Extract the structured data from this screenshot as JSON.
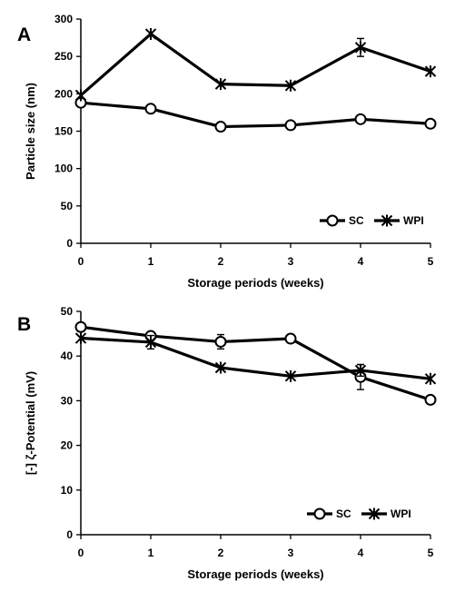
{
  "chart_data": [
    {
      "type": "line",
      "panel_label": "A",
      "xlabel": "Storage periods (weeks)",
      "ylabel": "Particle size (nm)",
      "x": [
        0,
        1,
        2,
        3,
        4,
        5
      ],
      "xticks": [
        0,
        1,
        2,
        3,
        4,
        5
      ],
      "xlim": [
        0,
        5
      ],
      "ylim": [
        0,
        300
      ],
      "yticks": [
        0,
        50,
        100,
        150,
        200,
        250,
        300
      ],
      "grid": false,
      "legend_position": "bottom-right",
      "series": [
        {
          "name": "SC",
          "marker": "circle",
          "values": [
            188,
            180,
            156,
            158,
            166,
            160
          ],
          "errors": [
            0,
            0,
            0,
            0,
            0,
            0
          ]
        },
        {
          "name": "WPI",
          "marker": "asterisk",
          "values": [
            198,
            280,
            213,
            211,
            262,
            230
          ],
          "errors": [
            0,
            0,
            0,
            0,
            12,
            0
          ]
        }
      ]
    },
    {
      "type": "line",
      "panel_label": "B",
      "xlabel": "Storage periods (weeks)",
      "ylabel": "[-] ζ-Potential (mV)",
      "x": [
        0,
        1,
        2,
        3,
        4,
        5
      ],
      "xticks": [
        0,
        1,
        2,
        3,
        4,
        5
      ],
      "xlim": [
        0,
        5
      ],
      "ylim": [
        0,
        50
      ],
      "yticks": [
        0,
        10,
        20,
        30,
        40,
        50
      ],
      "grid": false,
      "legend_position": "bottom-right",
      "series": [
        {
          "name": "SC",
          "marker": "circle",
          "values": [
            46.5,
            44.5,
            43.2,
            43.9,
            35.3,
            30.2
          ],
          "errors": [
            0,
            0.4,
            1.6,
            0.4,
            2.8,
            0.5
          ]
        },
        {
          "name": "WPI",
          "marker": "asterisk",
          "values": [
            44.0,
            43.1,
            37.4,
            35.5,
            36.8,
            34.9
          ],
          "errors": [
            0,
            1.5,
            0,
            0,
            1.3,
            0
          ]
        }
      ]
    }
  ]
}
